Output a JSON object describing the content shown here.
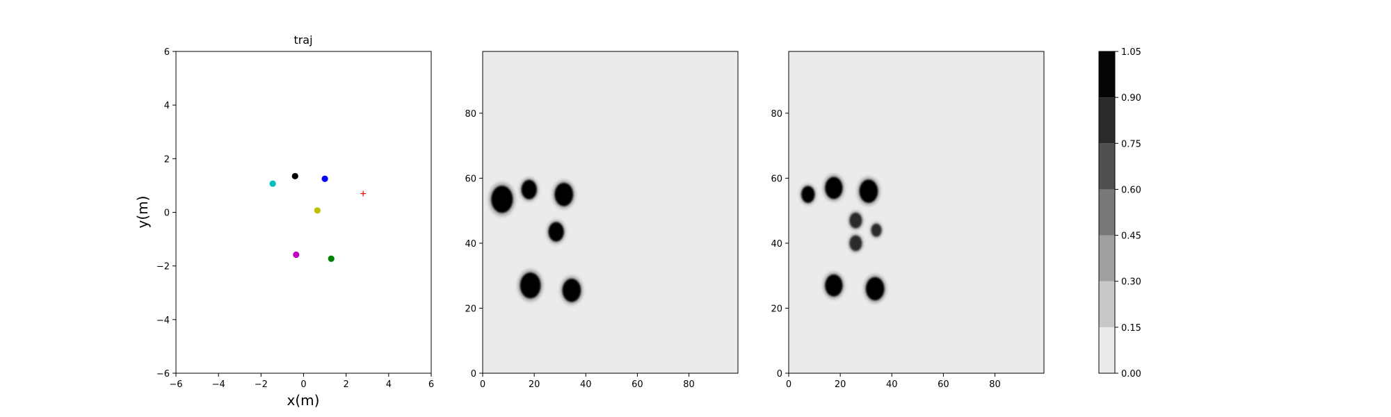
{
  "chart_data": [
    {
      "type": "scatter",
      "title": "traj",
      "xlabel": "x(m)",
      "ylabel": "y(m)",
      "xlim": [
        -6,
        6
      ],
      "ylim": [
        -6,
        6
      ],
      "xticks": [
        "−6",
        "−4",
        "−2",
        "0",
        "2",
        "4",
        "6"
      ],
      "yticks": [
        "−6",
        "−4",
        "−2",
        "0",
        "2",
        "4",
        "6"
      ],
      "grid": false,
      "points": [
        {
          "x": -0.4,
          "y": 1.35,
          "color": "#000000",
          "marker": "dot"
        },
        {
          "x": 1.0,
          "y": 1.25,
          "color": "#0000ff",
          "marker": "dot"
        },
        {
          "x": -1.45,
          "y": 1.07,
          "color": "#00bfbf",
          "marker": "dot"
        },
        {
          "x": 0.65,
          "y": 0.07,
          "color": "#bfbf00",
          "marker": "dot"
        },
        {
          "x": -0.35,
          "y": -1.58,
          "color": "#bf00bf",
          "marker": "dot"
        },
        {
          "x": 1.3,
          "y": -1.73,
          "color": "#008000",
          "marker": "dot"
        },
        {
          "x": 2.8,
          "y": 0.7,
          "color": "#ff0000",
          "marker": "plus"
        }
      ]
    },
    {
      "type": "heatmap",
      "xlim": [
        0,
        99
      ],
      "ylim": [
        0,
        99
      ],
      "xticks": [
        "0",
        "20",
        "40",
        "60",
        "80"
      ],
      "yticks": [
        "0",
        "20",
        "40",
        "60",
        "80"
      ],
      "background_value": 0.05,
      "blobs": [
        {
          "x": 7.5,
          "y": 53.5,
          "r": 4.2,
          "value": 1.0
        },
        {
          "x": 18,
          "y": 56.5,
          "r": 3.0,
          "value": 1.0
        },
        {
          "x": 31.5,
          "y": 55,
          "r": 3.6,
          "value": 1.0
        },
        {
          "x": 28.5,
          "y": 43.5,
          "r": 3.0,
          "value": 1.0
        },
        {
          "x": 18.5,
          "y": 27,
          "r": 4.0,
          "value": 1.0
        },
        {
          "x": 34.5,
          "y": 25.5,
          "r": 3.6,
          "value": 1.0
        }
      ]
    },
    {
      "type": "heatmap",
      "xlim": [
        0,
        99
      ],
      "ylim": [
        0,
        99
      ],
      "xticks": [
        "0",
        "20",
        "40",
        "60",
        "80"
      ],
      "yticks": [
        "0",
        "20",
        "40",
        "60",
        "80"
      ],
      "background_value": 0.05,
      "blobs": [
        {
          "x": 7.5,
          "y": 55,
          "r": 2.6,
          "value": 0.9
        },
        {
          "x": 17.5,
          "y": 57,
          "r": 3.4,
          "value": 1.0
        },
        {
          "x": 31,
          "y": 56,
          "r": 3.6,
          "value": 1.0
        },
        {
          "x": 26,
          "y": 47,
          "r": 2.4,
          "value": 0.8
        },
        {
          "x": 26,
          "y": 40,
          "r": 2.4,
          "value": 0.85
        },
        {
          "x": 34,
          "y": 44,
          "r": 2.0,
          "value": 0.8
        },
        {
          "x": 17.5,
          "y": 27,
          "r": 3.4,
          "value": 1.0
        },
        {
          "x": 33.5,
          "y": 26,
          "r": 3.6,
          "value": 1.0
        }
      ]
    }
  ],
  "colorbar": {
    "levels": [
      0.0,
      0.15,
      0.3,
      0.45,
      0.6,
      0.75,
      0.9,
      1.05
    ],
    "tick_labels": [
      "0.00",
      "0.15",
      "0.30",
      "0.45",
      "0.60",
      "0.75",
      "0.90",
      "1.05"
    ],
    "colors": [
      "#ebebeb",
      "#c8c8c8",
      "#a0a0a0",
      "#787878",
      "#505050",
      "#2b2b2b",
      "#050505"
    ]
  }
}
